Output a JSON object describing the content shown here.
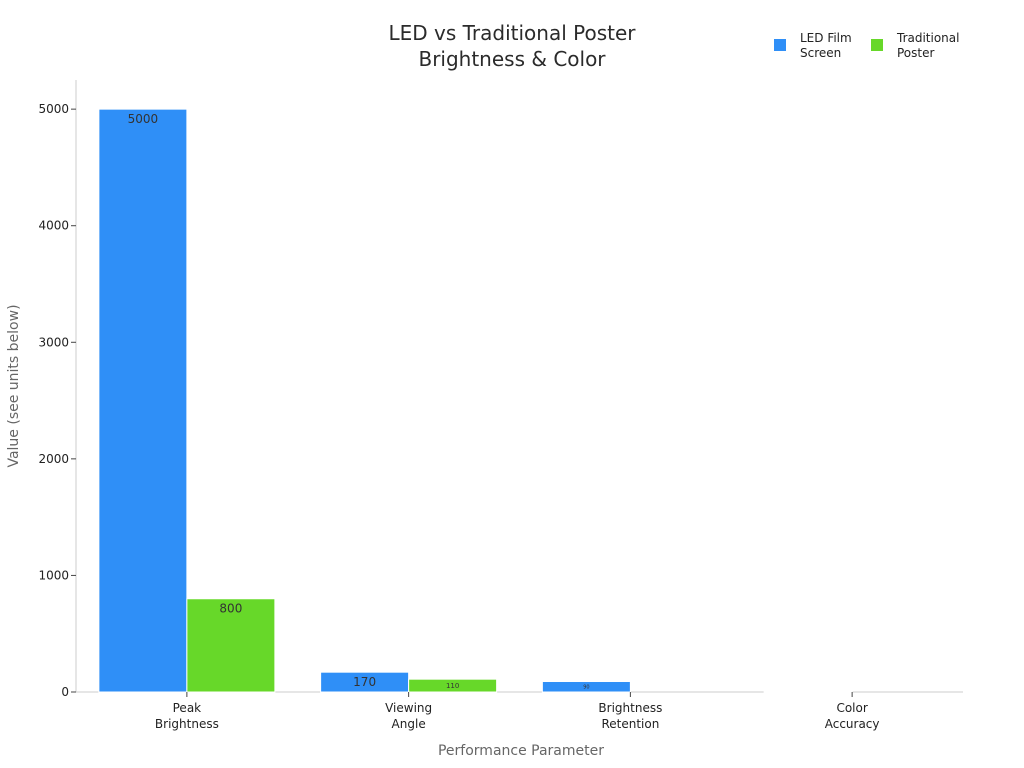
{
  "chart_data": {
    "type": "bar",
    "title_lines": [
      "LED vs Traditional Poster",
      "Brightness & Color"
    ],
    "xlabel": "Performance Parameter",
    "ylabel": "Value (see units below)",
    "categories": [
      {
        "lines": [
          "Peak",
          "Brightness"
        ]
      },
      {
        "lines": [
          "Viewing",
          "Angle"
        ]
      },
      {
        "lines": [
          "Brightness",
          "Retention"
        ]
      },
      {
        "lines": [
          "Color",
          "Accuracy"
        ]
      }
    ],
    "series": [
      {
        "name_lines": [
          "LED Film",
          "Screen"
        ],
        "color": "#2f8ff7",
        "values": [
          5000,
          170,
          90,
          2
        ],
        "labels": [
          "5000",
          "170",
          "90",
          ""
        ]
      },
      {
        "name_lines": [
          "Traditional",
          "Poster"
        ],
        "color": "#67d829",
        "values": [
          800,
          110,
          0,
          0
        ],
        "labels": [
          "800",
          "110",
          "",
          ""
        ]
      }
    ],
    "ylim": [
      0,
      5250
    ],
    "yticks": [
      0,
      1000,
      2000,
      3000,
      4000,
      5000
    ],
    "legend_position": "top-right",
    "grid": false
  }
}
